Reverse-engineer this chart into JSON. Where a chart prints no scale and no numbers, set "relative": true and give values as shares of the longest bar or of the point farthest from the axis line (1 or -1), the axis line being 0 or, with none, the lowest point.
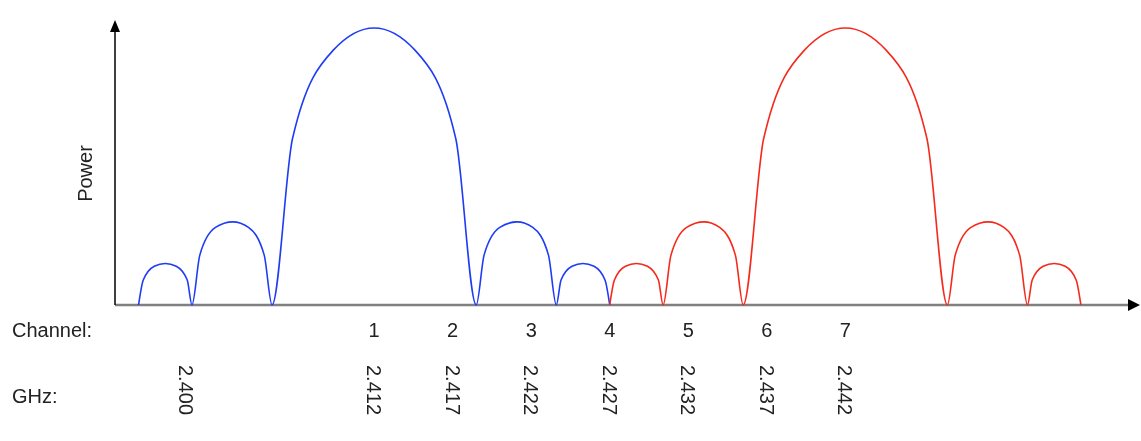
{
  "chart_data": {
    "type": "line",
    "relative": true,
    "ylabel": "Power",
    "xlabel": "GHz:",
    "tick_labels": "x",
    "xlim": [
      2.3955,
      2.46
    ],
    "xticks": [
      {
        "value": 2.4,
        "label": "2.400"
      },
      {
        "value": 2.412,
        "label": "2.412"
      },
      {
        "value": 2.417,
        "label": "2.417"
      },
      {
        "value": 2.422,
        "label": "2.422"
      },
      {
        "value": 2.427,
        "label": "2.427"
      },
      {
        "value": 2.432,
        "label": "2.432"
      },
      {
        "value": 2.437,
        "label": "2.437"
      },
      {
        "value": 2.442,
        "label": "2.442"
      }
    ],
    "x2label": "Channel:",
    "x2lim": [
      -2.3,
      10.6
    ],
    "x2ticks": [
      1,
      2,
      3,
      4,
      5,
      6,
      7
    ],
    "series": [
      {
        "color": "#1f3cf5",
        "x": [
          2.397,
          2.3973,
          2.398,
          2.3987,
          2.3994,
          2.4001,
          2.4004,
          2.4009,
          2.4019,
          2.403,
          2.404,
          2.405,
          2.4055,
          2.4068,
          2.4094,
          2.412,
          2.4146,
          2.4172,
          2.4185,
          2.419,
          2.42,
          2.4211,
          2.4221,
          2.4231,
          2.4236,
          2.4239,
          2.4246,
          2.4253,
          2.426,
          2.4267,
          2.427
        ],
        "values": [
          0,
          0.09,
          0.14,
          0.15,
          0.14,
          0.09,
          0,
          0.18,
          0.28,
          0.3,
          0.28,
          0.18,
          0,
          0.6,
          0.92,
          1,
          0.92,
          0.6,
          0,
          0.18,
          0.28,
          0.3,
          0.28,
          0.18,
          0,
          0.09,
          0.14,
          0.15,
          0.14,
          0.09,
          0
        ]
      },
      {
        "color": "#f5291c",
        "x": [
          2.427,
          2.4273,
          2.428,
          2.4287,
          2.4294,
          2.4301,
          2.4304,
          2.4309,
          2.4319,
          2.433,
          2.434,
          2.435,
          2.4355,
          2.4368,
          2.4394,
          2.442,
          2.4446,
          2.4472,
          2.4485,
          2.449,
          2.45,
          2.4511,
          2.4521,
          2.4531,
          2.4536,
          2.4539,
          2.4546,
          2.4553,
          2.456,
          2.4567,
          2.457
        ],
        "values": [
          0,
          0.09,
          0.14,
          0.15,
          0.14,
          0.09,
          0,
          0.18,
          0.28,
          0.3,
          0.28,
          0.18,
          0,
          0.6,
          0.92,
          1,
          0.92,
          0.6,
          0,
          0.18,
          0.28,
          0.3,
          0.28,
          0.18,
          0,
          0.09,
          0.14,
          0.15,
          0.14,
          0.09,
          0
        ]
      }
    ]
  }
}
